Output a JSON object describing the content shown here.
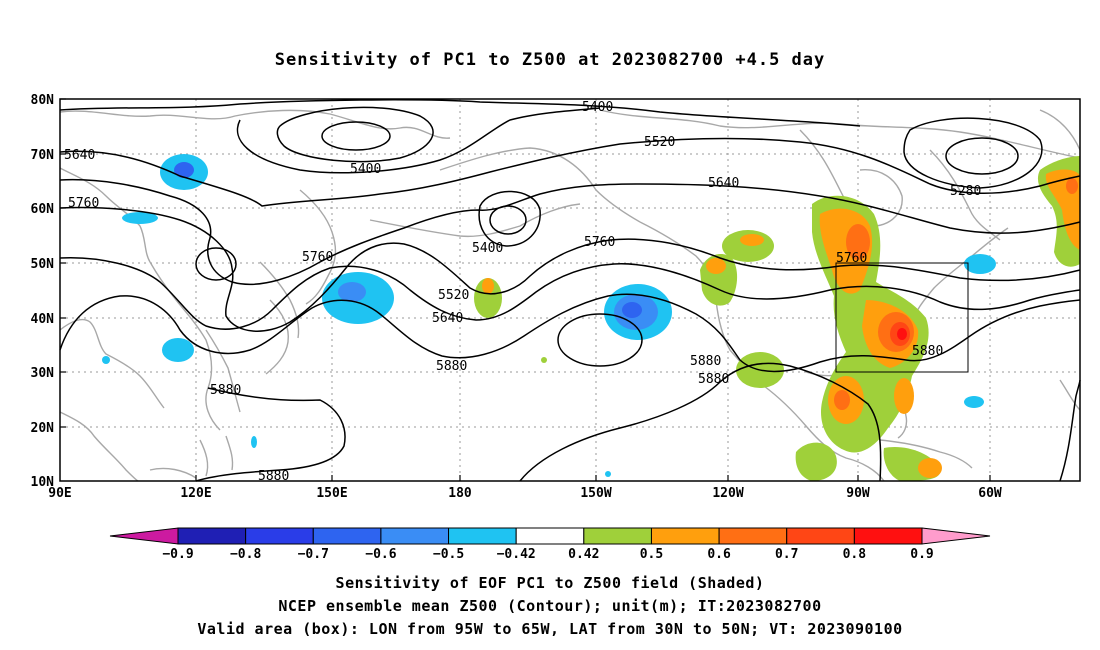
{
  "title": "Sensitivity of PC1 to Z500 at 2023082700 +4.5 day",
  "map": {
    "lat_labels": [
      "80N",
      "70N",
      "60N",
      "50N",
      "40N",
      "30N",
      "20N",
      "10N"
    ],
    "lon_labels": [
      "90E",
      "120E",
      "150E",
      "180",
      "150W",
      "120W",
      "90W",
      "60W"
    ],
    "contour_labels": [
      "5640",
      "5760",
      "5400",
      "5400",
      "5520",
      "5640",
      "5400",
      "5280",
      "5760",
      "5520",
      "5640",
      "5760",
      "5880",
      "5880",
      "5880",
      "5760",
      "5880",
      "5880",
      "5880"
    ],
    "valid_box": {
      "lon_from": "95W",
      "lon_to": "65W",
      "lat_from": "30N",
      "lat_to": "50N"
    }
  },
  "colorbar": {
    "labels": [
      "-0.9",
      "-0.8",
      "-0.7",
      "-0.6",
      "-0.5",
      "-0.42",
      "0.42",
      "0.5",
      "0.6",
      "0.7",
      "0.8",
      "0.9"
    ],
    "colors": [
      "#1f1fb4",
      "#2a3de8",
      "#2e64f0",
      "#3a8df5",
      "#1fc3f2",
      "#ffffff",
      "#9fd03a",
      "#ff9f0d",
      "#ff6f14",
      "#ff4615",
      "#ff1010"
    ],
    "under_color": "#cc1aa0",
    "over_color": "#ff9ccc"
  },
  "footer": {
    "line1": "Sensitivity of EOF PC1 to Z500 field (Shaded)",
    "line2": "NCEP ensemble mean Z500 (Contour); unit(m); IT:2023082700",
    "line3": "Valid area (box): LON from 95W to 65W, LAT from 30N to 50N; VT: 2023090100"
  }
}
